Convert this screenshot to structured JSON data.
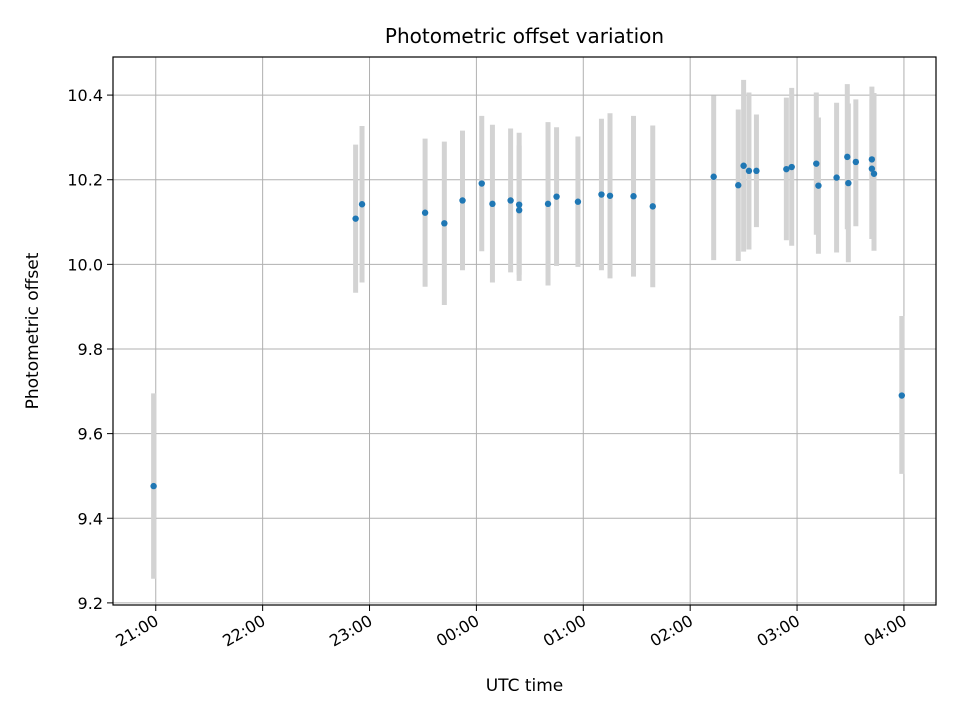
{
  "chart_data": {
    "type": "scatter",
    "title": "Photometric offset variation",
    "xlabel": "UTC time",
    "ylabel": "Photometric offset",
    "x_unit": "hours (UTC clock, continuing past midnight as 24+)",
    "xlim": [
      20.6,
      28.3
    ],
    "ylim": [
      9.195,
      10.49
    ],
    "grid": true,
    "legend": "none",
    "x_ticks": [
      21,
      22,
      23,
      24,
      25,
      26,
      27,
      28
    ],
    "x_tick_labels": [
      "21:00",
      "22:00",
      "23:00",
      "00:00",
      "01:00",
      "02:00",
      "03:00",
      "04:00"
    ],
    "y_ticks": [
      9.2,
      9.4,
      9.6,
      9.8,
      10.0,
      10.2,
      10.4
    ],
    "y_tick_labels": [
      "9.2",
      "9.4",
      "9.6",
      "9.8",
      "10.0",
      "10.2",
      "10.4"
    ],
    "colors": {
      "point": "#1f77b4",
      "errorbar": "#d3d3d3",
      "grid": "#b0b0b0",
      "axes": "#000000"
    },
    "series": [
      {
        "points": [
          {
            "x": 20.98,
            "y": 9.476,
            "lo": 9.257,
            "hi": 9.695
          },
          {
            "x": 22.87,
            "y": 10.108,
            "lo": 9.933,
            "hi": 10.283
          },
          {
            "x": 22.93,
            "y": 10.142,
            "lo": 9.957,
            "hi": 10.327
          },
          {
            "x": 23.52,
            "y": 10.122,
            "lo": 9.947,
            "hi": 10.297
          },
          {
            "x": 23.7,
            "y": 10.097,
            "lo": 9.904,
            "hi": 10.29
          },
          {
            "x": 23.87,
            "y": 10.151,
            "lo": 9.986,
            "hi": 10.316
          },
          {
            "x": 24.05,
            "y": 10.191,
            "lo": 10.031,
            "hi": 10.351
          },
          {
            "x": 24.15,
            "y": 10.143,
            "lo": 9.957,
            "hi": 10.33
          },
          {
            "x": 24.32,
            "y": 10.151,
            "lo": 9.981,
            "hi": 10.321
          },
          {
            "x": 24.4,
            "y": 10.141,
            "lo": 9.961,
            "hi": 10.311
          },
          {
            "x": 24.4,
            "y": 10.128,
            "lo": 9.975,
            "hi": 10.281
          },
          {
            "x": 24.67,
            "y": 10.143,
            "lo": 9.95,
            "hi": 10.336
          },
          {
            "x": 24.75,
            "y": 10.16,
            "lo": 9.996,
            "hi": 10.324
          },
          {
            "x": 24.95,
            "y": 10.148,
            "lo": 9.994,
            "hi": 10.302
          },
          {
            "x": 25.17,
            "y": 10.165,
            "lo": 9.986,
            "hi": 10.344
          },
          {
            "x": 25.25,
            "y": 10.162,
            "lo": 9.967,
            "hi": 10.357
          },
          {
            "x": 25.47,
            "y": 10.161,
            "lo": 9.971,
            "hi": 10.351
          },
          {
            "x": 25.65,
            "y": 10.137,
            "lo": 9.946,
            "hi": 10.328
          },
          {
            "x": 26.22,
            "y": 10.207,
            "lo": 10.01,
            "hi": 10.399
          },
          {
            "x": 26.45,
            "y": 10.187,
            "lo": 10.008,
            "hi": 10.366
          },
          {
            "x": 26.5,
            "y": 10.233,
            "lo": 10.03,
            "hi": 10.436
          },
          {
            "x": 26.55,
            "y": 10.221,
            "lo": 10.035,
            "hi": 10.406
          },
          {
            "x": 26.62,
            "y": 10.221,
            "lo": 10.088,
            "hi": 10.354
          },
          {
            "x": 26.9,
            "y": 10.225,
            "lo": 10.057,
            "hi": 10.394
          },
          {
            "x": 26.95,
            "y": 10.23,
            "lo": 10.044,
            "hi": 10.417
          },
          {
            "x": 27.18,
            "y": 10.238,
            "lo": 10.07,
            "hi": 10.406
          },
          {
            "x": 27.2,
            "y": 10.186,
            "lo": 10.025,
            "hi": 10.347
          },
          {
            "x": 27.37,
            "y": 10.205,
            "lo": 10.028,
            "hi": 10.382
          },
          {
            "x": 27.47,
            "y": 10.254,
            "lo": 10.083,
            "hi": 10.426
          },
          {
            "x": 27.48,
            "y": 10.192,
            "lo": 10.005,
            "hi": 10.38
          },
          {
            "x": 27.55,
            "y": 10.242,
            "lo": 10.09,
            "hi": 10.39
          },
          {
            "x": 27.7,
            "y": 10.248,
            "lo": 10.06,
            "hi": 10.42
          },
          {
            "x": 27.7,
            "y": 10.226,
            "lo": 10.06,
            "hi": 10.39
          },
          {
            "x": 27.72,
            "y": 10.214,
            "lo": 10.032,
            "hi": 10.405
          },
          {
            "x": 27.98,
            "y": 9.69,
            "lo": 9.505,
            "hi": 9.878
          }
        ]
      }
    ]
  }
}
